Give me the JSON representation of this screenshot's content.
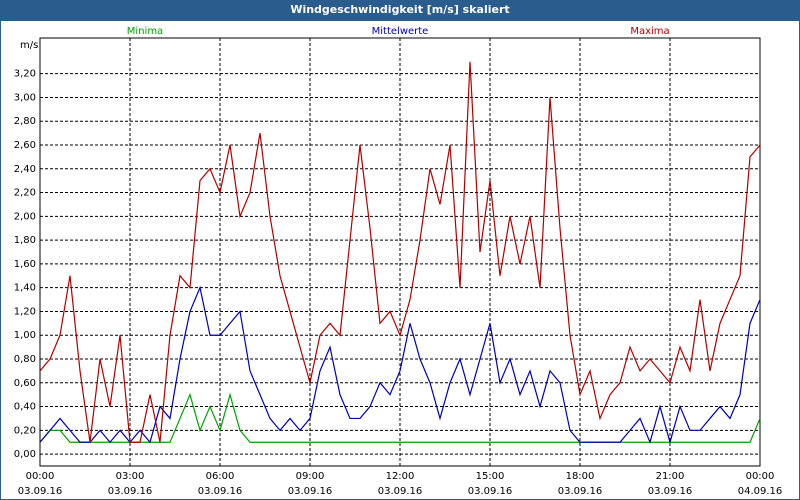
{
  "chart_data": {
    "type": "line",
    "title": "Windgeschwindigkeit [m/s] skaliert",
    "y_unit": "m/s",
    "x": [
      0,
      20,
      40,
      60,
      80,
      100,
      120,
      140,
      160,
      180,
      200,
      220,
      240,
      260,
      280,
      300,
      320,
      340,
      360,
      380,
      400,
      420,
      440,
      460,
      480,
      500,
      520,
      540,
      560,
      580,
      600,
      620,
      640,
      660,
      680,
      700,
      720,
      740,
      760,
      780,
      800,
      820,
      840,
      860,
      880,
      900,
      920,
      940,
      960,
      980,
      1000,
      1020,
      1040,
      1060,
      1080,
      1100,
      1120,
      1140,
      1160,
      1180,
      1200,
      1220,
      1240,
      1260,
      1280,
      1300,
      1320,
      1340,
      1360,
      1380,
      1400,
      1420,
      1440
    ],
    "series": [
      {
        "name": "Minima",
        "color": "#00a000",
        "values": [
          0.1,
          0.2,
          0.2,
          0.1,
          0.1,
          0.1,
          0.1,
          0.1,
          0.1,
          0.1,
          0.1,
          0.1,
          0.1,
          0.1,
          0.3,
          0.5,
          0.2,
          0.4,
          0.2,
          0.5,
          0.2,
          0.1,
          0.1,
          0.1,
          0.1,
          0.1,
          0.1,
          0.1,
          0.1,
          0.1,
          0.1,
          0.1,
          0.1,
          0.1,
          0.1,
          0.1,
          0.1,
          0.1,
          0.1,
          0.1,
          0.1,
          0.1,
          0.1,
          0.1,
          0.1,
          0.1,
          0.1,
          0.1,
          0.1,
          0.1,
          0.1,
          0.1,
          0.1,
          0.1,
          0.1,
          0.1,
          0.1,
          0.1,
          0.1,
          0.1,
          0.1,
          0.1,
          0.1,
          0.1,
          0.1,
          0.1,
          0.1,
          0.1,
          0.1,
          0.1,
          0.1,
          0.1,
          0.3
        ]
      },
      {
        "name": "Mittelwerte",
        "color": "#0000b0",
        "values": [
          0.1,
          0.2,
          0.3,
          0.2,
          0.1,
          0.1,
          0.2,
          0.1,
          0.2,
          0.1,
          0.2,
          0.1,
          0.4,
          0.3,
          0.8,
          1.2,
          1.4,
          1.0,
          1.0,
          1.1,
          1.2,
          0.7,
          0.5,
          0.3,
          0.2,
          0.3,
          0.2,
          0.3,
          0.7,
          0.9,
          0.5,
          0.3,
          0.3,
          0.4,
          0.6,
          0.5,
          0.7,
          1.1,
          0.8,
          0.6,
          0.3,
          0.6,
          0.8,
          0.5,
          0.8,
          1.1,
          0.6,
          0.8,
          0.5,
          0.7,
          0.4,
          0.7,
          0.6,
          0.2,
          0.1,
          0.1,
          0.1,
          0.1,
          0.1,
          0.2,
          0.3,
          0.1,
          0.4,
          0.1,
          0.4,
          0.2,
          0.2,
          0.3,
          0.4,
          0.3,
          0.5,
          1.1,
          1.3
        ]
      },
      {
        "name": "Maxima",
        "color": "#b00000",
        "values": [
          0.7,
          0.8,
          1.0,
          1.5,
          0.7,
          0.1,
          0.8,
          0.4,
          1.0,
          0.1,
          0.1,
          0.5,
          0.1,
          1.0,
          1.5,
          1.4,
          2.3,
          2.4,
          2.2,
          2.6,
          2.0,
          2.2,
          2.7,
          2.0,
          1.5,
          1.2,
          0.9,
          0.6,
          1.0,
          1.1,
          1.0,
          1.8,
          2.6,
          1.9,
          1.1,
          1.2,
          1.0,
          1.3,
          1.8,
          2.4,
          2.1,
          2.6,
          1.4,
          3.3,
          1.7,
          2.3,
          1.5,
          2.0,
          1.6,
          2.0,
          1.4,
          3.0,
          1.9,
          1.0,
          0.5,
          0.7,
          0.3,
          0.5,
          0.6,
          0.9,
          0.7,
          0.8,
          0.7,
          0.6,
          0.9,
          0.7,
          1.3,
          0.7,
          1.1,
          1.3,
          1.5,
          2.5,
          2.6
        ]
      }
    ],
    "xlim": [
      0,
      1440
    ],
    "xticks": [
      {
        "value": 0,
        "label": "00:00",
        "date": "03.09.16"
      },
      {
        "value": 180,
        "label": "03:00",
        "date": "03.09.16"
      },
      {
        "value": 360,
        "label": "06:00",
        "date": "03.09.16"
      },
      {
        "value": 540,
        "label": "09:00",
        "date": "03.09.16"
      },
      {
        "value": 720,
        "label": "12:00",
        "date": "03.09.16"
      },
      {
        "value": 900,
        "label": "15:00",
        "date": "03.09.16"
      },
      {
        "value": 1080,
        "label": "18:00",
        "date": "03.09.16"
      },
      {
        "value": 1260,
        "label": "21:00",
        "date": "03.09.16"
      },
      {
        "value": 1440,
        "label": "00:00",
        "date": "04.09.16"
      }
    ],
    "ylim": [
      -0.1,
      3.5
    ],
    "yticks": [
      {
        "value": 0,
        "label": "0,00"
      },
      {
        "value": 0.2,
        "label": "0,20"
      },
      {
        "value": 0.4,
        "label": "0,40"
      },
      {
        "value": 0.6,
        "label": "0,60"
      },
      {
        "value": 0.8,
        "label": "0,80"
      },
      {
        "value": 1.0,
        "label": "1,00"
      },
      {
        "value": 1.2,
        "label": "1,20"
      },
      {
        "value": 1.4,
        "label": "1,40"
      },
      {
        "value": 1.6,
        "label": "1,60"
      },
      {
        "value": 1.8,
        "label": "1,80"
      },
      {
        "value": 2.0,
        "label": "2,00"
      },
      {
        "value": 2.2,
        "label": "2,20"
      },
      {
        "value": 2.4,
        "label": "2,40"
      },
      {
        "value": 2.6,
        "label": "2,60"
      },
      {
        "value": 2.8,
        "label": "2,80"
      },
      {
        "value": 3.0,
        "label": "3,00"
      },
      {
        "value": 3.2,
        "label": "3,20"
      }
    ],
    "grid": true
  }
}
